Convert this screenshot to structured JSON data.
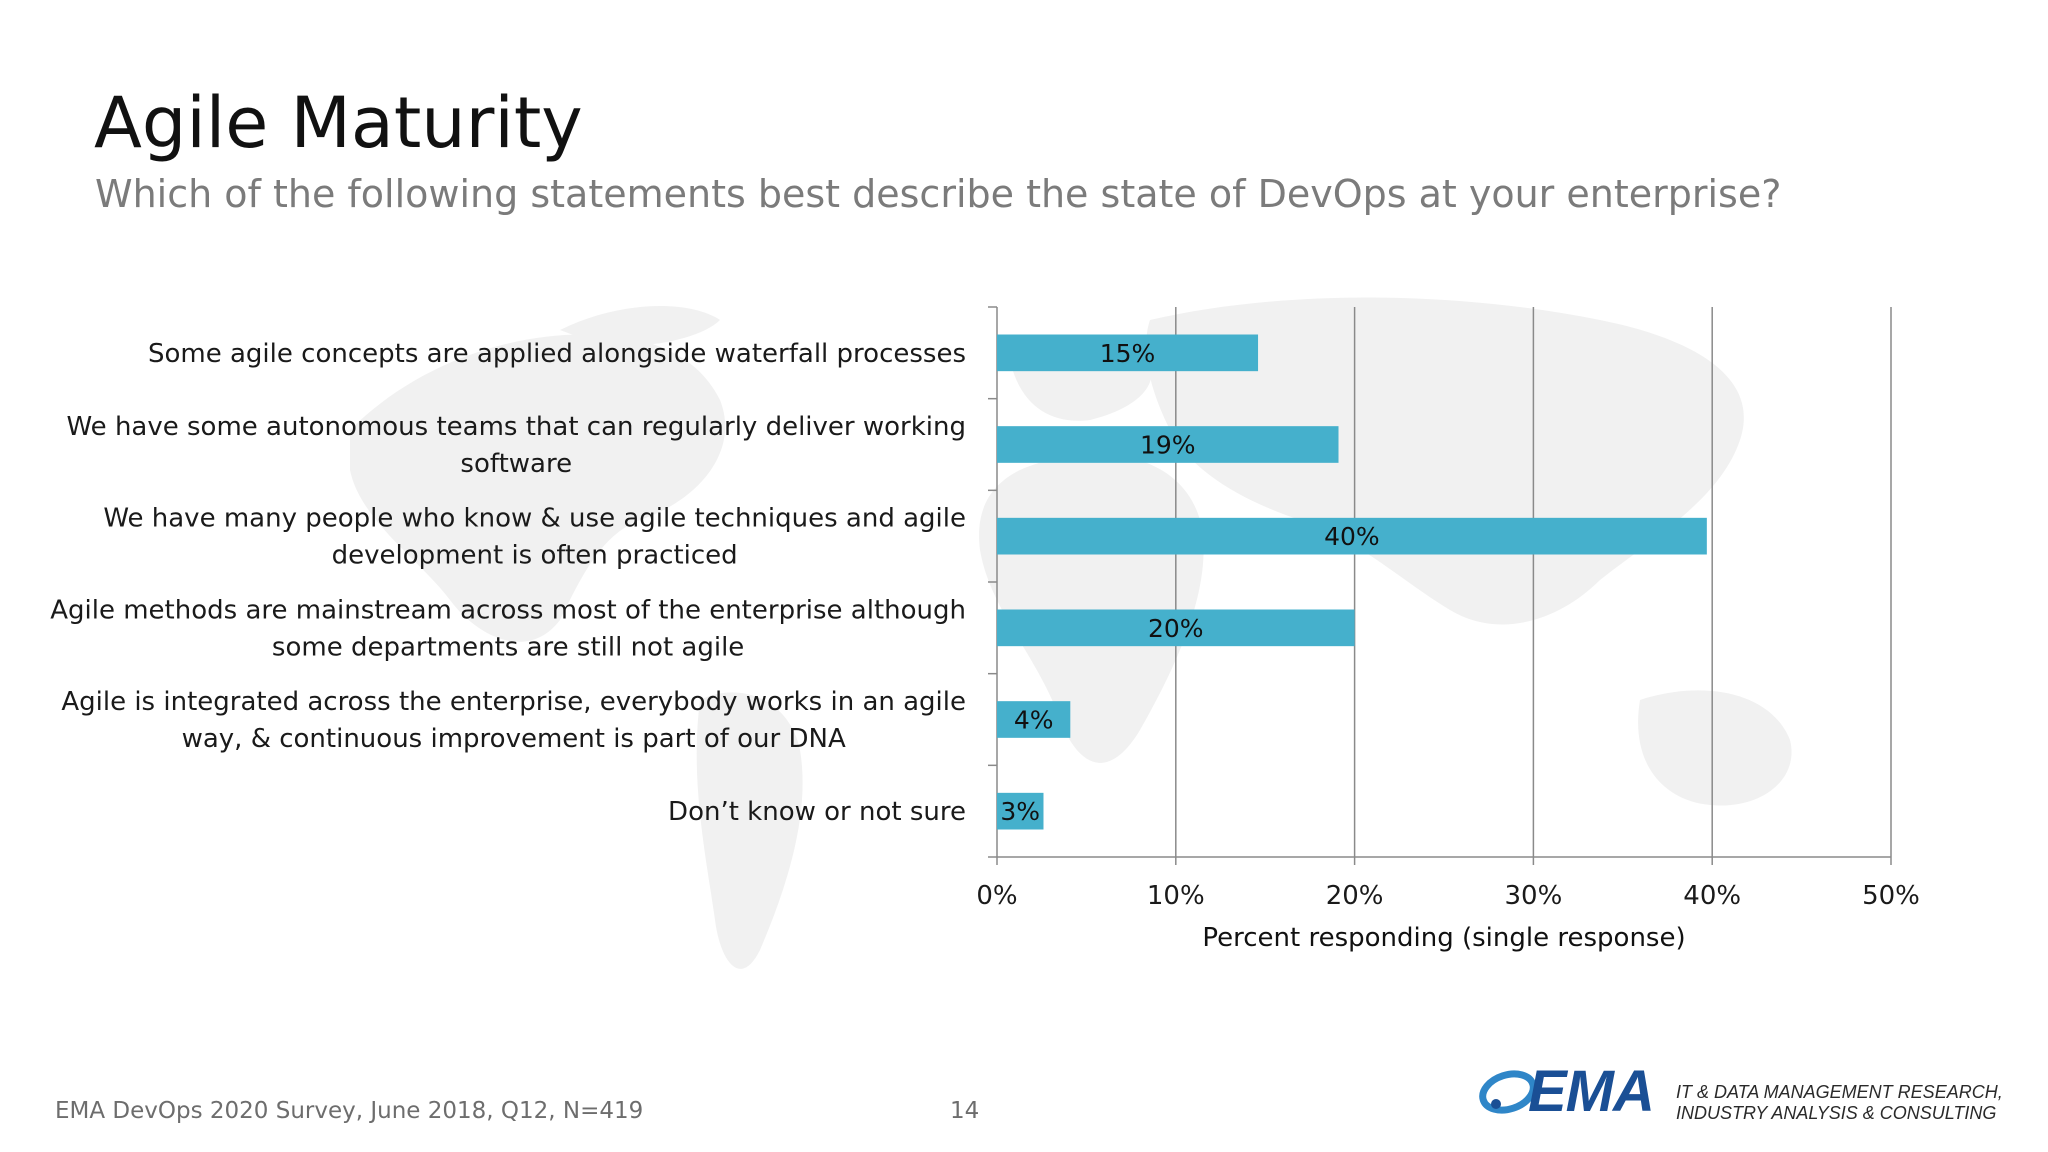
{
  "header": {
    "title": "Agile Maturity",
    "subtitle": "Which of the following statements best describe the state of DevOps at your enterprise?"
  },
  "chart_data": {
    "type": "bar",
    "orientation": "horizontal",
    "categories": [
      "Some agile concepts are applied alongside waterfall processes",
      "We have some autonomous teams that can regularly deliver working software",
      "We have many people who know & use agile techniques and agile development is often practiced",
      "Agile methods are mainstream across most of the enterprise although some departments are still not agile",
      "Agile is integrated across the enterprise, everybody works in an agile way, & continuous improvement is part of our DNA",
      "Don’t know or not sure"
    ],
    "category_lines": [
      [
        "Some agile concepts are applied alongside waterfall processes"
      ],
      [
        "We have some autonomous teams that can regularly deliver working",
        "software"
      ],
      [
        "We have many people who know & use agile techniques and agile",
        "development is often practiced"
      ],
      [
        "Agile methods are mainstream across most of the enterprise although",
        "some departments are still not agile"
      ],
      [
        "Agile is integrated across the enterprise, everybody works in an agile",
        "way, & continuous improvement is part of our DNA"
      ],
      [
        "Don’t know or not sure"
      ]
    ],
    "values": [
      14.6,
      19.1,
      39.7,
      20.0,
      4.1,
      2.6
    ],
    "data_labels": [
      "15%",
      "19%",
      "40%",
      "20%",
      "4%",
      "3%"
    ],
    "xlim": [
      0,
      50
    ],
    "xticks": [
      0,
      10,
      20,
      30,
      40,
      50
    ],
    "xtick_labels": [
      "0%",
      "10%",
      "20%",
      "30%",
      "40%",
      "50%"
    ],
    "xlabel": "Percent responding (single response)",
    "ylabel": "",
    "grid": "vertical",
    "bar_color": "#45b0cc",
    "legend": "none"
  },
  "footer": {
    "source": "EMA DevOps 2020 Survey, June 2018, Q12, N=419",
    "page": "14"
  },
  "brand": {
    "logo": "EMA",
    "tagline_1": "IT & DATA MANAGEMENT RESEARCH,",
    "tagline_2": "INDUSTRY ANALYSIS & CONSULTING",
    "color": "#1a4f95"
  }
}
